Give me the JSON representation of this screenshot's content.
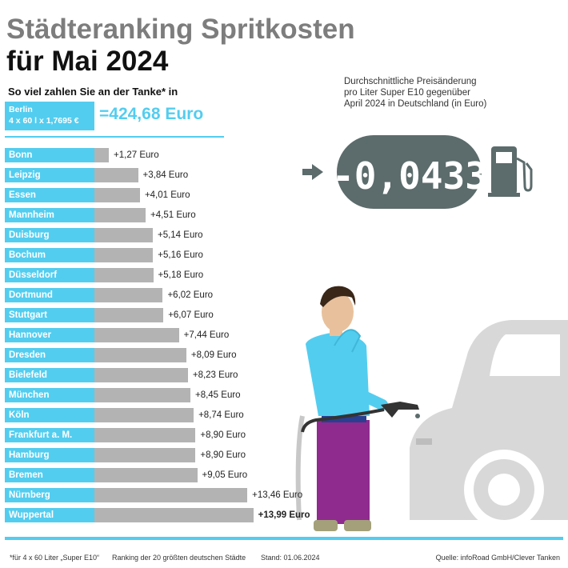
{
  "title_line1": "Städteranking Spritkosten",
  "title_line2": "für Mai 2024",
  "subtitle": "So viel zahlen Sie an der Tanke* in",
  "berlin": {
    "city": "Berlin",
    "calc": "4 x 60 l x 1,7695 €",
    "total": "=424,68 Euro"
  },
  "price_change": {
    "description_lines": [
      "Durchschnittliche Preisänderung",
      "pro Liter Super E10 gegenüber",
      "April 2024 in Deutschland (in Euro)"
    ],
    "value": "-0,0433"
  },
  "chart_data": {
    "type": "bar",
    "orientation": "horizontal",
    "categories": [
      "Bonn",
      "Leipzig",
      "Essen",
      "Mannheim",
      "Duisburg",
      "Bochum",
      "Düsseldorf",
      "Dortmund",
      "Stuttgart",
      "Hannover",
      "Dresden",
      "Bielefeld",
      "München",
      "Köln",
      "Frankfurt a. M.",
      "Hamburg",
      "Bremen",
      "Nürnberg",
      "Wuppertal"
    ],
    "values": [
      1.27,
      3.84,
      4.01,
      4.51,
      5.14,
      5.16,
      5.18,
      6.02,
      6.07,
      7.44,
      8.09,
      8.23,
      8.45,
      8.74,
      8.9,
      8.9,
      9.05,
      13.46,
      13.99
    ],
    "value_labels": [
      "+1,27 Euro",
      "+3,84 Euro",
      "+4,01 Euro",
      "+4,51 Euro",
      "+5,14 Euro",
      "+5,16 Euro",
      "+5,18 Euro",
      "+6,02 Euro",
      "+6,07 Euro",
      "+7,44 Euro",
      "+8,09 Euro",
      "+8,23 Euro",
      "+8,45 Euro",
      "+8,74 Euro",
      "+8,90 Euro",
      "+8,90 Euro",
      "+9,05 Euro",
      "+13,46 Euro",
      "+13,99 Euro"
    ],
    "highlight": "Wuppertal",
    "colors": {
      "label_bg": "#53cdef",
      "bar": "#b3b3b3"
    }
  },
  "footer": {
    "footnote": "*für 4 x 60 Liter „Super E10“",
    "ranking": "Ranking der 20 größten deutschen Städte",
    "stand": "Stand: 01.06.2024",
    "source": "Quelle: infoRoad GmbH/Clever Tanken"
  },
  "colors": {
    "accent": "#53cdef",
    "title_gray": "#7d7d7d",
    "bar_gray": "#b3b3b3",
    "disc": "#5c6b6b"
  }
}
